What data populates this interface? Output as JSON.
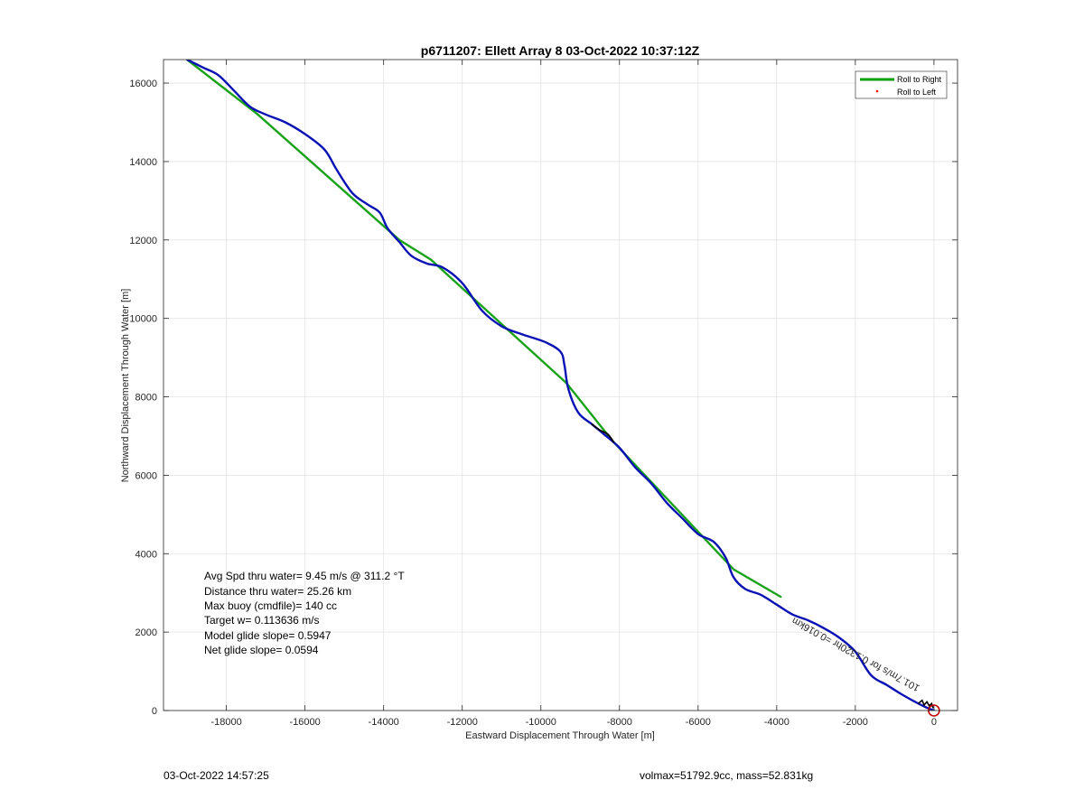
{
  "chart_data": {
    "type": "line",
    "title": "p6711207: Ellett Array 8 03-Oct-2022 10:37:12Z",
    "xlabel": "Eastward Displacement Through Water [m]",
    "ylabel": "Northward Displacement Through Water [m]",
    "xlim": [
      -19600,
      600
    ],
    "ylim": [
      0,
      16600
    ],
    "grid": true,
    "x_ticks": [
      -18000,
      -16000,
      -14000,
      -12000,
      -10000,
      -8000,
      -6000,
      -4000,
      -2000,
      0
    ],
    "x_tick_labels": [
      "-18000",
      "-16000",
      "-14000",
      "-12000",
      "-10000",
      "-8000",
      "-6000",
      "-4000",
      "-2000",
      "0"
    ],
    "y_ticks": [
      0,
      2000,
      4000,
      6000,
      8000,
      10000,
      12000,
      14000,
      16000
    ],
    "y_tick_labels": [
      "0",
      "2000",
      "4000",
      "6000",
      "8000",
      "10000",
      "12000",
      "14000",
      "16000"
    ],
    "legend_position": "top-right",
    "legend": [
      {
        "label": "Roll to Right",
        "color": "#00a000",
        "style": "line"
      },
      {
        "label": "Roll to Left",
        "color": "#ff0000",
        "style": "dot"
      }
    ],
    "series": [
      {
        "name": "Roll to Right",
        "color": "#1aa31a",
        "x": [
          -19000,
          -17200,
          -13600,
          -12800,
          -9350,
          -8200,
          -5100,
          -3900
        ],
        "y": [
          16600,
          15200,
          12000,
          11500,
          8350,
          6900,
          3600,
          2900
        ]
      },
      {
        "color": "#0a12b4",
        "x": [
          -19000,
          -18600,
          -18200,
          -17800,
          -17400,
          -17000,
          -16500,
          -16000,
          -15500,
          -15200,
          -14800,
          -14400,
          -14100,
          -13900,
          -13600,
          -13300,
          -12900,
          -12500,
          -12000,
          -11500,
          -11000,
          -10500,
          -9900,
          -9500,
          -9400,
          -9300,
          -9050,
          -8700,
          -8400,
          -8000,
          -7600,
          -7200,
          -6800,
          -6400,
          -6000,
          -5600,
          -5300,
          -5100,
          -4800,
          -4400,
          -4000,
          -3600,
          -3200,
          -2800,
          -2400,
          -2000,
          -1600,
          -1200,
          -800,
          -400,
          -200,
          0
        ],
        "y": [
          16600,
          16400,
          16200,
          15800,
          15400,
          15200,
          15000,
          14700,
          14300,
          13800,
          13200,
          12900,
          12700,
          12300,
          11950,
          11600,
          11400,
          11300,
          10900,
          10200,
          9800,
          9600,
          9400,
          9150,
          8800,
          8200,
          7600,
          7300,
          7050,
          6700,
          6200,
          5800,
          5300,
          4900,
          4500,
          4300,
          3900,
          3400,
          3100,
          2950,
          2700,
          2450,
          2300,
          2100,
          1850,
          1500,
          900,
          650,
          400,
          180,
          80,
          0
        ]
      },
      {
        "color": "#000000",
        "x": [
          -8700,
          -8500,
          -8300,
          -8150
        ],
        "y": [
          7300,
          7150,
          7050,
          6850
        ]
      }
    ],
    "annotations": [
      {
        "text": "101.7m/s for 0.1320hr =0.016km",
        "x": -1950,
        "y": 1500,
        "angle_deg": 28.7,
        "color": "#000000"
      }
    ],
    "markers": [
      {
        "label": "origin",
        "x": 0,
        "y": 0,
        "shape": "circle",
        "color": "#c00000"
      }
    ]
  },
  "stats": [
    "Avg Spd thru water=  9.45 m/s @ 311.2 °T",
    "Distance thru water= 25.26 km",
    "Max buoy (cmdfile)= 140 cc",
    "Target w= 0.113636 m/s",
    "Model glide slope= 0.5947",
    "Net glide slope= 0.0594"
  ],
  "footer": {
    "left": "03-Oct-2022 14:57:25",
    "right": "volmax=51792.9cc, mass=52.831kg"
  }
}
